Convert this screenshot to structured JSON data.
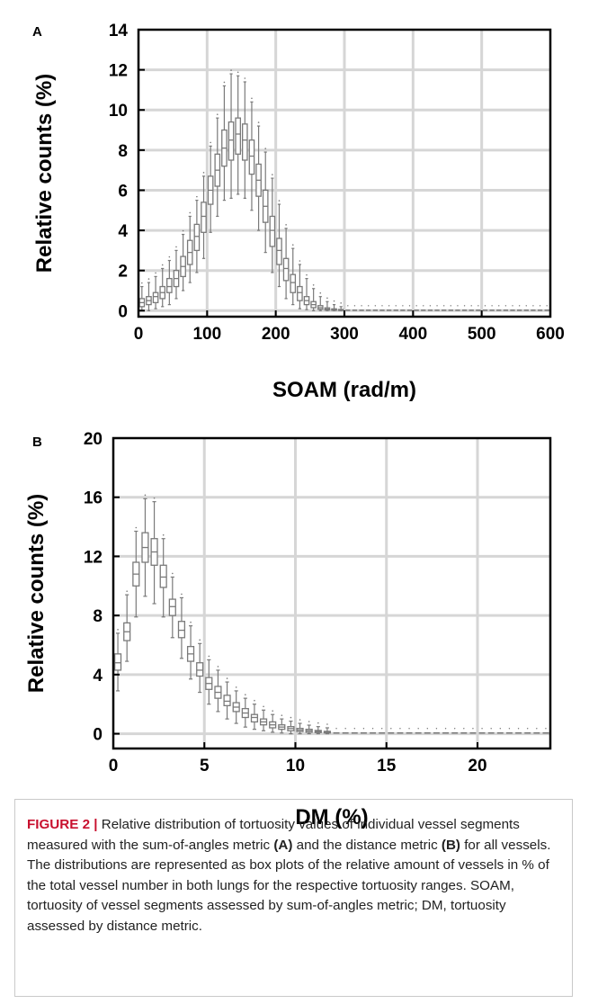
{
  "figure": {
    "caption": {
      "label": "FIGURE 2 |",
      "p1": " Relative distribution of tortuosity values of individual vessel segments measured with the sum-of-angles metric ",
      "r1": "(A)",
      "p2": " and the distance metric ",
      "r2": "(B)",
      "p3": " for all vessels. The distributions are represented as box plots of the relative amount of vessels in % of the total vessel number in both lungs for the respective tortuosity ranges. SOAM, tortuosity of vessel segments assessed by sum-of-angles metric; DM, tortuosity assessed by distance metric."
    },
    "colors": {
      "box": "#7a7a7a",
      "grid": "#d6d6d6",
      "axis": "#000000",
      "caption_label": "#c8102e",
      "caption_border": "#c9c9c9"
    }
  },
  "chart_data": [
    {
      "panel": "A",
      "type": "box",
      "xlabel": "SOAM (rad/m)",
      "ylabel": "Relative counts (%)",
      "xlim": [
        0,
        600
      ],
      "ylim": [
        -0.3,
        14
      ],
      "xticks": [
        0,
        100,
        200,
        300,
        400,
        500,
        600
      ],
      "xtick_labels": [
        "0",
        "100",
        "200",
        "300",
        "400",
        "500",
        "600"
      ],
      "yticks": [
        0,
        2,
        4,
        6,
        8,
        10,
        12,
        14
      ],
      "ytick_labels": [
        "0",
        "2",
        "4",
        "6",
        "8",
        "10",
        "12",
        "14"
      ],
      "grid": true,
      "box_width": 7,
      "x": [
        5,
        15,
        25,
        35,
        45,
        55,
        65,
        75,
        85,
        95,
        105,
        115,
        125,
        135,
        145,
        155,
        165,
        175,
        185,
        195,
        205,
        215,
        225,
        235,
        245,
        255,
        265,
        275,
        285,
        295
      ],
      "median": [
        0.4,
        0.5,
        0.7,
        0.9,
        1.2,
        1.6,
        2.2,
        2.9,
        3.7,
        4.7,
        6.0,
        7.0,
        8.1,
        8.5,
        8.8,
        8.5,
        7.7,
        6.5,
        5.2,
        4.0,
        3.0,
        2.1,
        1.4,
        0.9,
        0.5,
        0.3,
        0.15,
        0.08,
        0.05,
        0.03
      ],
      "q1": [
        0.2,
        0.3,
        0.4,
        0.6,
        0.9,
        1.2,
        1.7,
        2.3,
        3.0,
        3.9,
        5.3,
        6.2,
        7.2,
        7.5,
        7.8,
        7.5,
        6.8,
        5.7,
        4.4,
        3.2,
        2.3,
        1.5,
        0.9,
        0.5,
        0.3,
        0.15,
        0.07,
        0.03,
        0.02,
        0.01
      ],
      "q3": [
        0.6,
        0.7,
        0.9,
        1.2,
        1.6,
        2.0,
        2.7,
        3.5,
        4.3,
        5.4,
        6.7,
        7.8,
        9.0,
        9.4,
        9.6,
        9.3,
        8.5,
        7.3,
        6.0,
        4.7,
        3.6,
        2.6,
        1.8,
        1.2,
        0.7,
        0.45,
        0.25,
        0.14,
        0.09,
        0.06
      ],
      "whisker_low": [
        0.0,
        0.0,
        0.1,
        0.2,
        0.3,
        0.6,
        1.0,
        1.4,
        1.9,
        2.6,
        3.9,
        4.7,
        5.5,
        5.6,
        5.8,
        5.6,
        5.0,
        4.0,
        2.9,
        1.9,
        1.2,
        0.6,
        0.3,
        0.1,
        0.05,
        0.0,
        0.0,
        0.0,
        0.0,
        0.0
      ],
      "whisker_high": [
        1.2,
        1.4,
        1.7,
        2.1,
        2.5,
        3.0,
        3.8,
        4.7,
        5.5,
        6.7,
        8.2,
        9.6,
        11.2,
        11.8,
        11.7,
        11.4,
        10.4,
        9.2,
        7.9,
        6.6,
        5.3,
        4.1,
        3.1,
        2.3,
        1.6,
        1.1,
        0.7,
        0.45,
        0.3,
        0.2
      ],
      "tail_x_start": 305,
      "tail_x_end": 595,
      "tail_step": 10,
      "tail_value": 0.02
    },
    {
      "panel": "B",
      "type": "box",
      "xlabel": "DM (%)",
      "ylabel": "Relative counts (%)",
      "xlim": [
        0,
        24
      ],
      "ylim": [
        -1,
        20
      ],
      "xticks": [
        0,
        5,
        10,
        15,
        20
      ],
      "xtick_labels": [
        "0",
        "5",
        "10",
        "15",
        "20"
      ],
      "yticks": [
        0,
        4,
        8,
        12,
        16,
        20
      ],
      "ytick_labels": [
        "0",
        "4",
        "8",
        "12",
        "16",
        "20"
      ],
      "grid": true,
      "box_width": 0.34,
      "x": [
        0.25,
        0.75,
        1.25,
        1.75,
        2.25,
        2.75,
        3.25,
        3.75,
        4.25,
        4.75,
        5.25,
        5.75,
        6.25,
        6.75,
        7.25,
        7.75,
        8.25,
        8.75,
        9.25,
        9.75,
        10.25,
        10.75,
        11.25,
        11.75
      ],
      "median": [
        4.8,
        6.9,
        10.8,
        12.6,
        12.3,
        10.6,
        8.6,
        7.0,
        5.4,
        4.3,
        3.4,
        2.8,
        2.2,
        1.8,
        1.4,
        1.1,
        0.8,
        0.6,
        0.45,
        0.35,
        0.25,
        0.2,
        0.15,
        0.1
      ],
      "q1": [
        4.3,
        6.3,
        10.0,
        11.6,
        11.4,
        9.9,
        8.0,
        6.5,
        4.9,
        3.9,
        3.0,
        2.4,
        1.9,
        1.5,
        1.1,
        0.8,
        0.6,
        0.4,
        0.3,
        0.2,
        0.15,
        0.1,
        0.08,
        0.05
      ],
      "q3": [
        5.4,
        7.5,
        11.6,
        13.6,
        13.2,
        11.4,
        9.1,
        7.6,
        5.9,
        4.8,
        3.8,
        3.2,
        2.6,
        2.1,
        1.7,
        1.3,
        1.0,
        0.8,
        0.6,
        0.48,
        0.36,
        0.3,
        0.22,
        0.16
      ],
      "whisker_low": [
        2.9,
        4.9,
        7.9,
        9.3,
        8.8,
        7.9,
        6.5,
        5.1,
        3.7,
        2.8,
        2.0,
        1.5,
        1.0,
        0.7,
        0.45,
        0.3,
        0.2,
        0.1,
        0.05,
        0.0,
        0.0,
        0.0,
        0.0,
        0.0
      ],
      "whisker_high": [
        6.8,
        9.4,
        13.7,
        15.9,
        15.7,
        13.2,
        10.6,
        9.2,
        7.3,
        6.1,
        5.0,
        4.3,
        3.5,
        2.9,
        2.4,
        2.0,
        1.6,
        1.3,
        1.0,
        0.85,
        0.7,
        0.58,
        0.48,
        0.4
      ],
      "tail_x_start": 12.25,
      "tail_x_end": 23.75,
      "tail_step": 0.5,
      "tail_value": 0.05
    }
  ]
}
